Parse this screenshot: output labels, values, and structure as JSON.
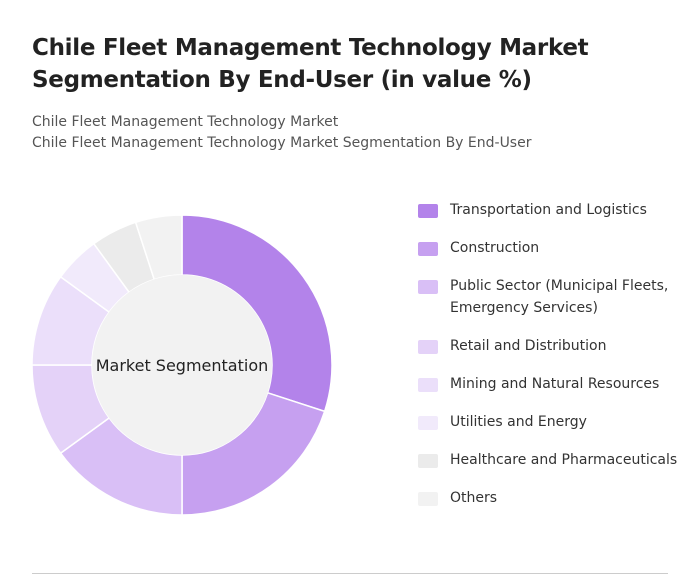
{
  "chart_data": {
    "type": "donut",
    "title": "Chile Fleet Management Technology Market Segmentation By End-User (in value %)",
    "subtitles": [
      "Chile Fleet Management Technology Market",
      "Chile Fleet Management Technology Market Segmentation By End-User"
    ],
    "center_label": "Market Segmentation",
    "categories": [
      "Transportation and Logistics",
      "Construction",
      "Public Sector (Municipal Fleets, Emergency Services)",
      "Retail and Distribution",
      "Mining and Natural Resources",
      "Utilities and Energy",
      "Healthcare and Pharmaceuticals",
      "Others"
    ],
    "values": [
      30,
      20,
      15,
      10,
      10,
      5,
      5,
      5
    ],
    "colors": [
      "#b383ea",
      "#c6a0f0",
      "#d9bff6",
      "#e4d2f8",
      "#ebdffa",
      "#f1eafb",
      "#ebebeb",
      "#f2f2f2"
    ]
  }
}
